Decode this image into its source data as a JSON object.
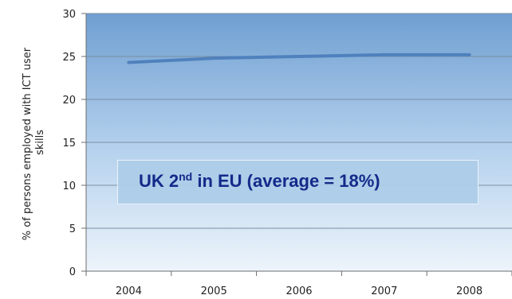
{
  "chart_data": {
    "type": "line",
    "x": [
      "2004",
      "2005",
      "2006",
      "2007",
      "2008"
    ],
    "series": [
      {
        "values": [
          24.3,
          24.8,
          25.0,
          25.2,
          25.2
        ]
      }
    ],
    "title": "",
    "xlabel": "",
    "ylabel": "% of persons employed with ICT user skills",
    "ylim": [
      0,
      30
    ],
    "yticks": [
      "0",
      "5",
      "10",
      "15",
      "20",
      "25",
      "30"
    ],
    "grid": true,
    "colors": {
      "line": "#4f81bd",
      "grid": "#7a8ea3",
      "plot_top": "#6f9fd1",
      "plot_bottom": "#eaf2fa"
    },
    "annotation": {
      "prefix": "UK 2",
      "superscript": "nd",
      "suffix": " in EU (average = 18%)"
    }
  }
}
